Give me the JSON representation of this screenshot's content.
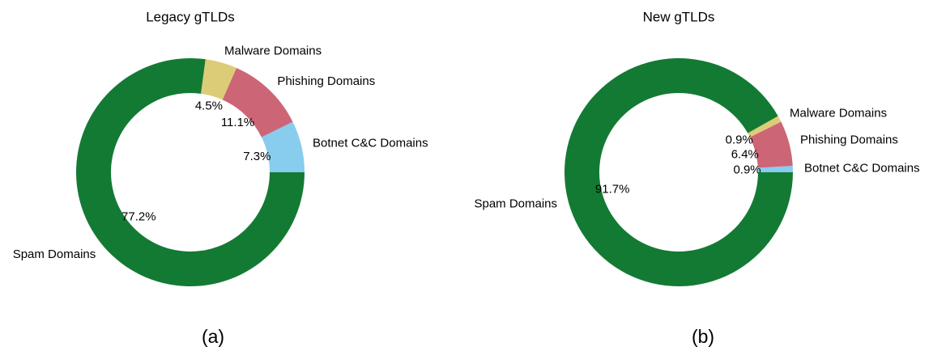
{
  "chart_data": [
    {
      "type": "pie",
      "title": "Legacy gTLDs",
      "caption": "(a)",
      "categories": [
        "Botnet C&C Domains",
        "Phishing Domains",
        "Malware Domains",
        "Spam Domains"
      ],
      "values": [
        7.3,
        11.1,
        4.5,
        77.2
      ],
      "value_labels": [
        "7.3%",
        "11.1%",
        "4.5%",
        "77.2%"
      ],
      "colors": [
        "#88ccee",
        "#cc6677",
        "#ddcc77",
        "#137a34"
      ]
    },
    {
      "type": "pie",
      "title": "New gTLDs",
      "caption": "(b)",
      "categories": [
        "Botnet C&C Domains",
        "Phishing Domains",
        "Malware Domains",
        "Spam Domains"
      ],
      "values": [
        0.9,
        6.4,
        0.9,
        91.7
      ],
      "value_labels": [
        "0.9%",
        "6.4%",
        "0.9%",
        "91.7%"
      ],
      "colors": [
        "#88ccee",
        "#cc6677",
        "#ddcc77",
        "#137a34"
      ]
    }
  ]
}
